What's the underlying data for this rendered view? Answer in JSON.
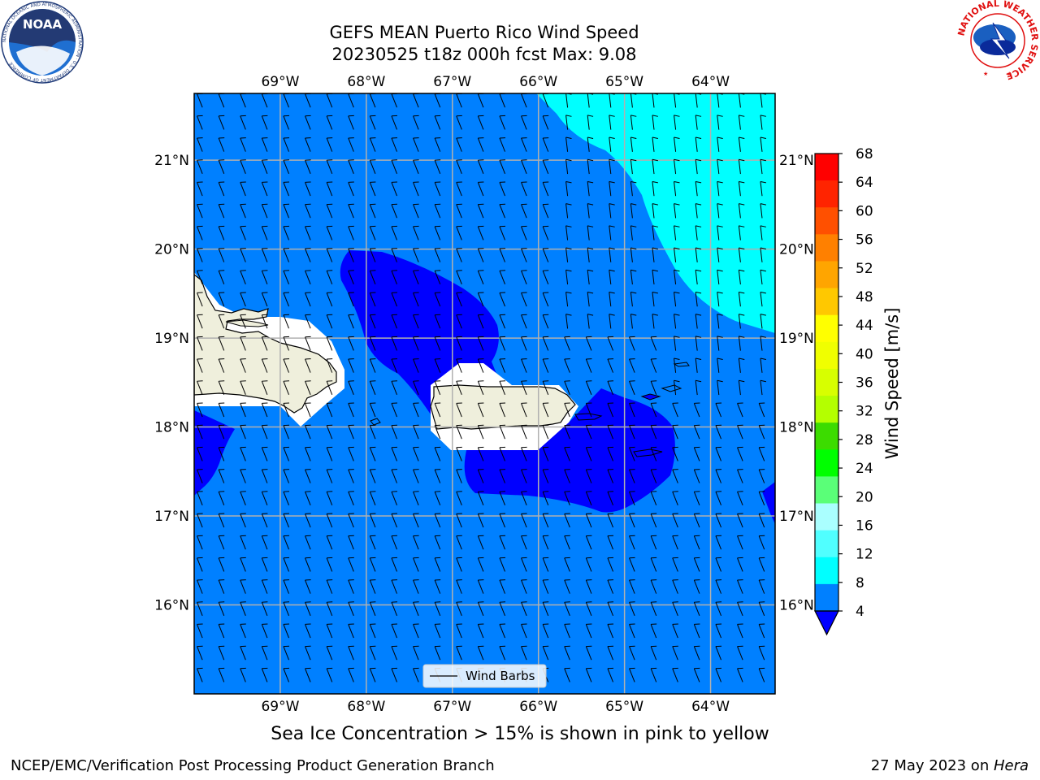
{
  "header": {
    "title_line1": "GEFS MEAN Puerto Rico Wind Speed",
    "title_line2": "20230525 t18z 000h fcst   Max: 9.08"
  },
  "map": {
    "lon_labels": [
      "69°W",
      "68°W",
      "67°W",
      "66°W",
      "65°W",
      "64°W"
    ],
    "lat_labels": [
      "21°N",
      "20°N",
      "19°N",
      "18°N",
      "17°N",
      "16°N"
    ],
    "extent": {
      "lon_min": -70.0,
      "lon_max": -63.25,
      "lat_min": 15.0,
      "lat_max": 21.75
    },
    "legend_label": "Wind Barbs",
    "colors": {
      "band_4_8": "#0080ff",
      "band_0_4": "#0000ff",
      "band_8_12": "#00ffff",
      "land": "#efefdc",
      "gridline": "#b0b0b0"
    }
  },
  "colorbar": {
    "label": "Wind Speed [m/s]",
    "ticks": [
      "68",
      "64",
      "60",
      "56",
      "52",
      "48",
      "44",
      "40",
      "36",
      "32",
      "28",
      "24",
      "20",
      "16",
      "12",
      "8",
      "4"
    ],
    "colors": [
      "#ff0000",
      "#ff2400",
      "#ff5000",
      "#ff8000",
      "#ffa500",
      "#ffc800",
      "#ffff00",
      "#f0ff00",
      "#d7ff00",
      "#b4ff00",
      "#3cdc00",
      "#00ff00",
      "#5aff78",
      "#aaffff",
      "#50ffff",
      "#00ffff",
      "#0080ff"
    ],
    "extend_color": "#0000ff"
  },
  "note": "Sea Ice Concentration > 15% is shown in pink to yellow",
  "footer": {
    "left": "NCEP/EMC/Verification Post Processing Product Generation Branch",
    "date": "27 May 2023 on ",
    "host": "Hera"
  },
  "logos": {
    "left": "noaa-logo",
    "right": "nws-logo",
    "left_text": "NOAA",
    "left_ring_text": "NATIONAL OCEANIC AND ATMOSPHERIC ADMINISTRATION · U.S. DEPARTMENT OF COMMERCE",
    "right_ring_text": "NATIONAL WEATHER SERVICE"
  }
}
